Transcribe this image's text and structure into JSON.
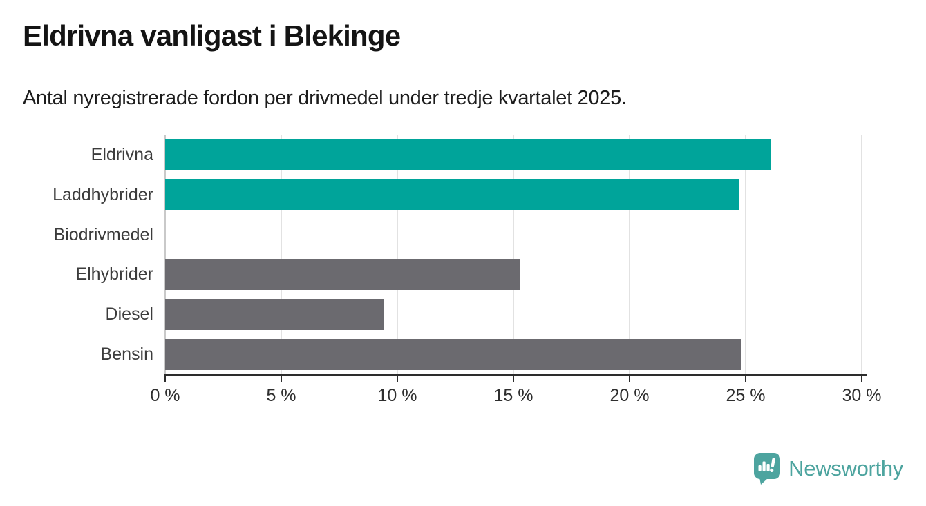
{
  "header": {
    "title": "Eldrivna vanligast i Blekinge",
    "subtitle": "Antal nyregistrerade fordon per drivmedel under tredje kvartalet 2025."
  },
  "chart_data": {
    "type": "bar",
    "orientation": "horizontal",
    "title": "Eldrivna vanligast i Blekinge",
    "subtitle": "Antal nyregistrerade fordon per drivmedel under tredje kvartalet 2025.",
    "categories": [
      "Eldrivna",
      "Laddhybrider",
      "Biodrivmedel",
      "Elhybrider",
      "Diesel",
      "Bensin"
    ],
    "values": [
      26.1,
      24.7,
      0,
      15.3,
      9.4,
      24.8
    ],
    "unit": "%",
    "bar_colors": [
      "#00a49a",
      "#00a49a",
      "#6b6a6f",
      "#6b6a6f",
      "#6b6a6f",
      "#6b6a6f"
    ],
    "highlight_color": "#00a49a",
    "default_color": "#6b6a6f",
    "xlim": [
      0,
      30
    ],
    "x_ticks": [
      0,
      5,
      10,
      15,
      20,
      25,
      30
    ],
    "x_tick_labels": [
      "0 %",
      "5 %",
      "10 %",
      "15 %",
      "20 %",
      "25 %",
      "30 %"
    ],
    "grid": true,
    "legend": "none",
    "xlabel": "",
    "ylabel": ""
  },
  "footer": {
    "logo_text": "Newsworthy",
    "logo_color": "#4da49f"
  }
}
